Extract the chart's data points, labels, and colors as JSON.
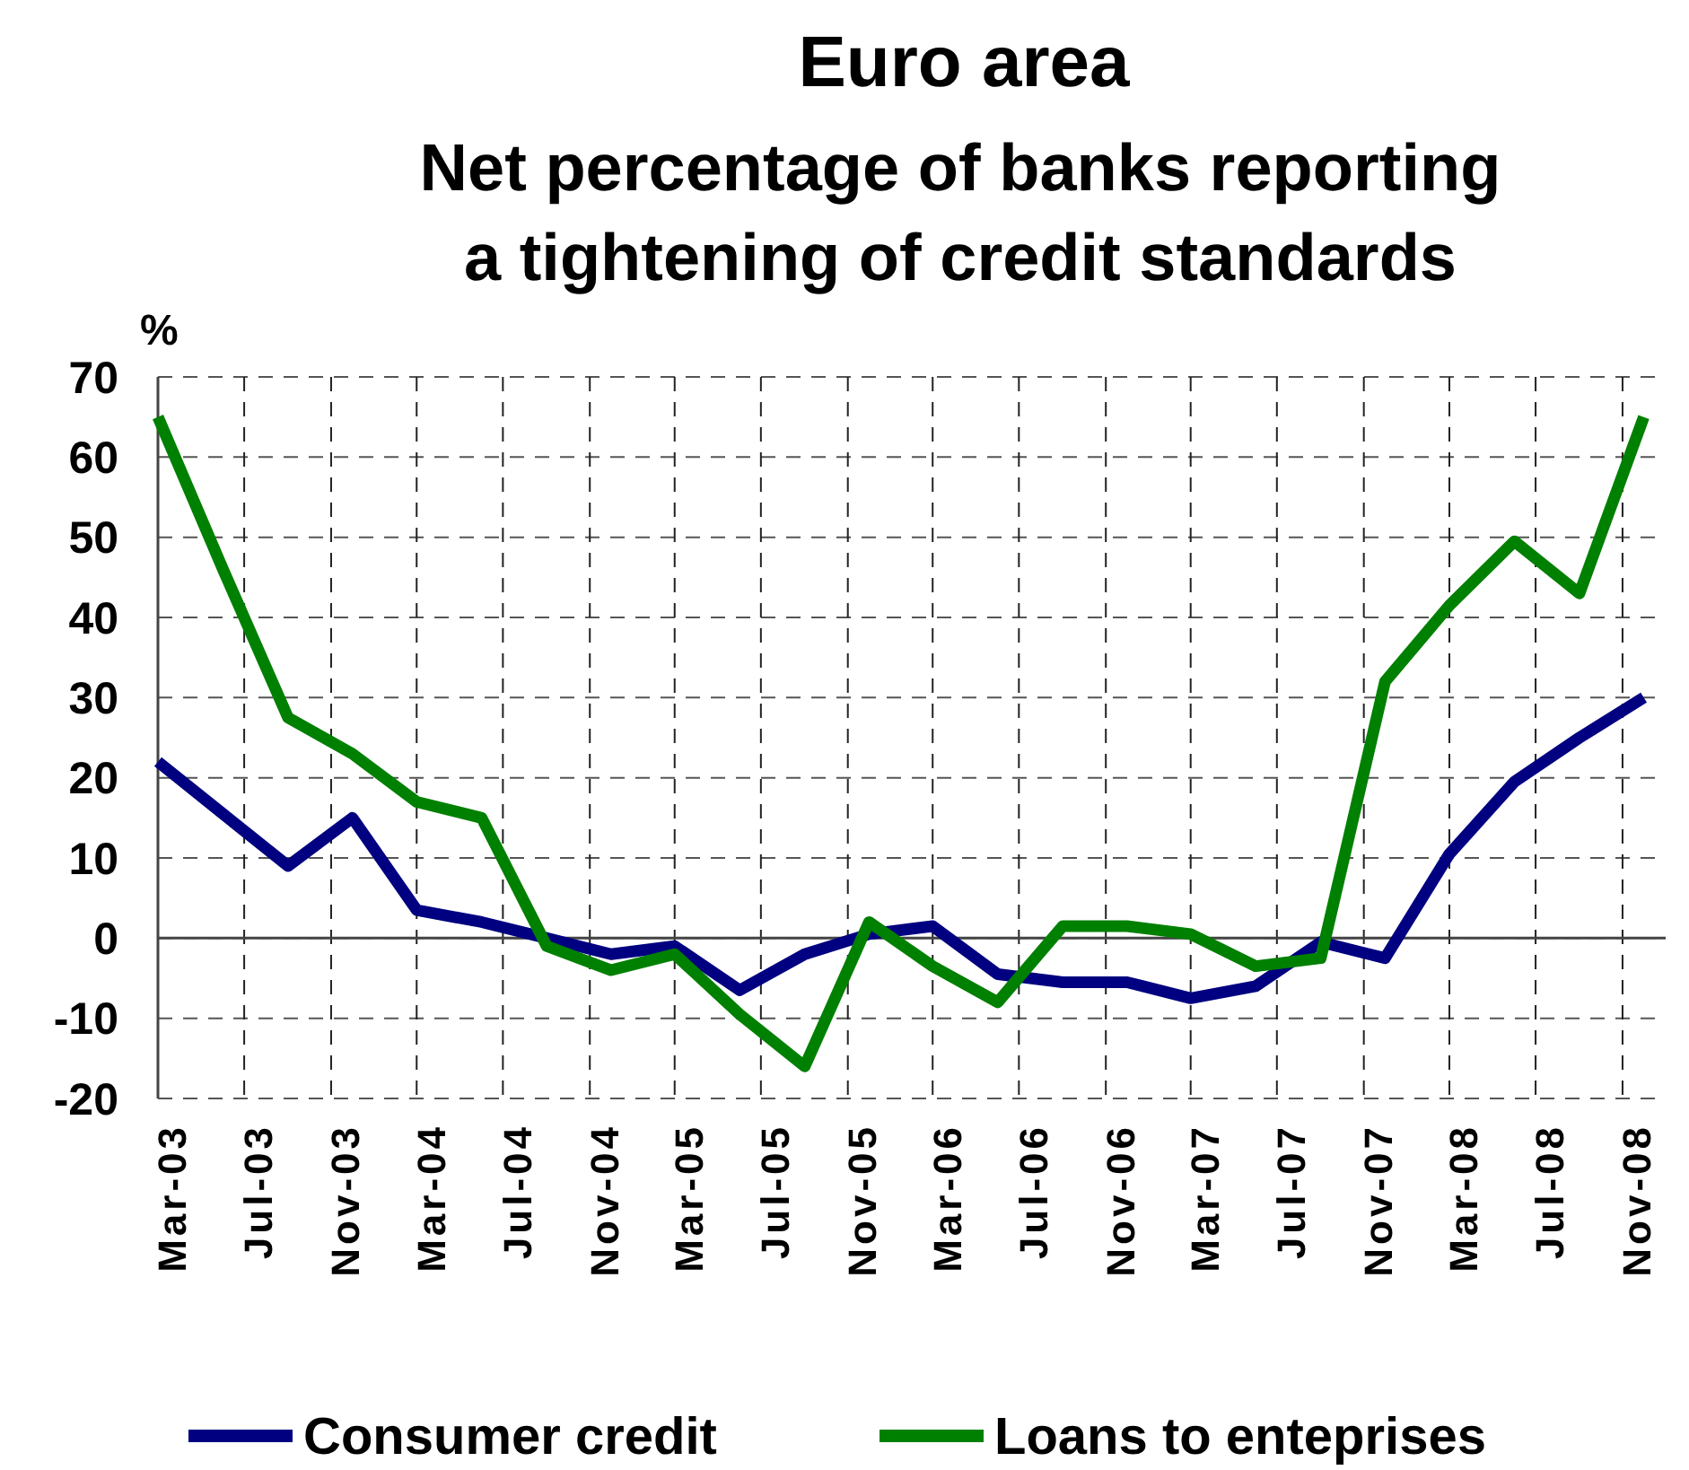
{
  "chart_data": {
    "type": "line",
    "title": "Euro area",
    "subtitle": "Net percentage of banks reporting a tightening of credit standards",
    "ylabel": "%",
    "x": [
      "2003-03",
      "2003-06",
      "2003-09",
      "2003-12",
      "2004-03",
      "2004-06",
      "2004-09",
      "2004-12",
      "2005-03",
      "2005-06",
      "2005-09",
      "2005-12",
      "2006-03",
      "2006-06",
      "2006-09",
      "2006-12",
      "2007-03",
      "2007-06",
      "2007-09",
      "2007-12",
      "2008-03",
      "2008-06",
      "2008-09",
      "2008-12"
    ],
    "series": [
      {
        "name": "Consumer credit",
        "color": "#000080",
        "values": [
          22,
          15.5,
          9,
          15,
          3.5,
          2,
          0,
          -2,
          -1,
          -6.5,
          -2,
          0.5,
          1.5,
          -4.5,
          -5.5,
          -5.5,
          -7.5,
          -6,
          -0.5,
          -2.5,
          10.5,
          19.5,
          25,
          30
        ]
      },
      {
        "name": "Loans to enteprises",
        "color": "#008000",
        "values": [
          65,
          46,
          27.5,
          23,
          17,
          15,
          -1,
          -4,
          -2,
          -9.5,
          -16,
          2,
          -3.5,
          -8,
          1.5,
          1.5,
          0.5,
          -3.5,
          -2.5,
          32,
          41.5,
          49.5,
          43,
          65
        ]
      }
    ],
    "xlim": [
      "2003-03",
      "2009-01"
    ],
    "xticks": [
      {
        "value": "2003-03",
        "label": "Mar-03"
      },
      {
        "value": "2003-07",
        "label": "Jul-03"
      },
      {
        "value": "2003-11",
        "label": "Nov-03"
      },
      {
        "value": "2004-03",
        "label": "Mar-04"
      },
      {
        "value": "2004-07",
        "label": "Jul-04"
      },
      {
        "value": "2004-11",
        "label": "Nov-04"
      },
      {
        "value": "2005-03",
        "label": "Mar-05"
      },
      {
        "value": "2005-07",
        "label": "Jul-05"
      },
      {
        "value": "2005-11",
        "label": "Nov-05"
      },
      {
        "value": "2006-03",
        "label": "Mar-06"
      },
      {
        "value": "2006-07",
        "label": "Jul-06"
      },
      {
        "value": "2006-11",
        "label": "Nov-06"
      },
      {
        "value": "2007-03",
        "label": "Mar-07"
      },
      {
        "value": "2007-07",
        "label": "Jul-07"
      },
      {
        "value": "2007-11",
        "label": "Nov-07"
      },
      {
        "value": "2008-03",
        "label": "Mar-08"
      },
      {
        "value": "2008-07",
        "label": "Jul-08"
      },
      {
        "value": "2008-11",
        "label": "Nov-08"
      }
    ],
    "ylim": [
      -20,
      70
    ],
    "yticks": [
      -20,
      -10,
      0,
      10,
      20,
      30,
      40,
      50,
      60,
      70
    ],
    "grid": true,
    "legend": "bottom",
    "marker": "none",
    "line_style": "solid"
  }
}
